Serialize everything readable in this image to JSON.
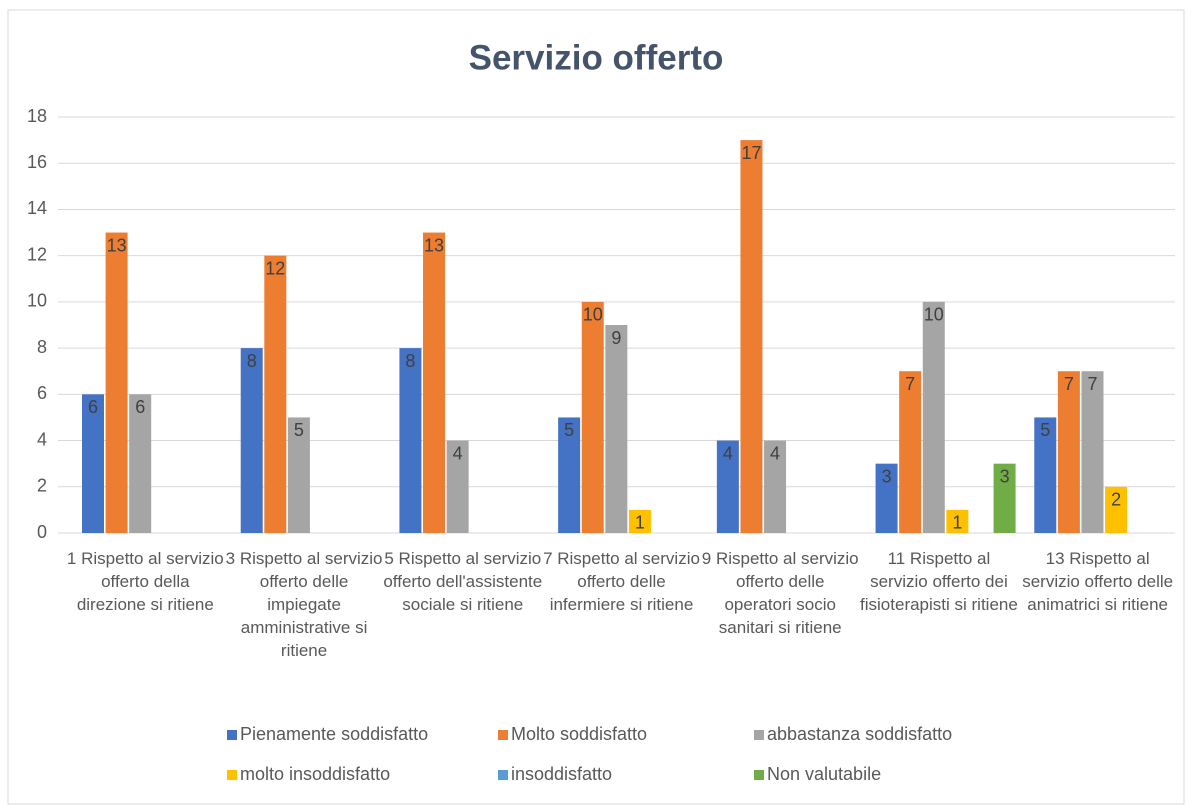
{
  "chart_data": {
    "type": "bar",
    "title": "Servizio offerto",
    "categories": [
      "1 Rispetto al servizio offerto della direzione si ritiene",
      "3 Rispetto al servizio offerto delle impiegate amministrative si ritiene",
      "5 Rispetto al servizio offerto dell'assistente sociale si ritiene",
      "7 Rispetto al servizio offerto delle infermiere si ritiene",
      "9 Rispetto al servizio offerto delle operatori socio sanitari si ritiene",
      "11 Rispetto al servizio offerto dei fisioterapisti si ritiene",
      "13 Rispetto al servizio offerto delle animatrici si ritiene"
    ],
    "series": [
      {
        "name": "Pienamente soddisfatto",
        "color": "#4472c4",
        "values": [
          6,
          8,
          8,
          5,
          4,
          3,
          5
        ]
      },
      {
        "name": "Molto soddisfatto",
        "color": "#ed7d31",
        "values": [
          13,
          12,
          13,
          10,
          17,
          7,
          7
        ]
      },
      {
        "name": "abbastanza soddisfatto",
        "color": "#a5a5a5",
        "values": [
          6,
          5,
          4,
          9,
          4,
          10,
          7
        ]
      },
      {
        "name": "molto insoddisfatto",
        "color": "#ffc000",
        "values": [
          null,
          null,
          null,
          1,
          null,
          1,
          2
        ]
      },
      {
        "name": "insoddisfatto",
        "color": "#5b9bd5",
        "values": [
          null,
          null,
          null,
          null,
          null,
          null,
          null
        ]
      },
      {
        "name": "Non valutabile",
        "color": "#70ad47",
        "values": [
          null,
          null,
          null,
          null,
          null,
          3,
          null
        ]
      }
    ],
    "ylim": [
      0,
      18
    ],
    "yticks": [
      0,
      2,
      4,
      6,
      8,
      10,
      12,
      14,
      16,
      18
    ],
    "grid": true,
    "legend": "bottom"
  }
}
